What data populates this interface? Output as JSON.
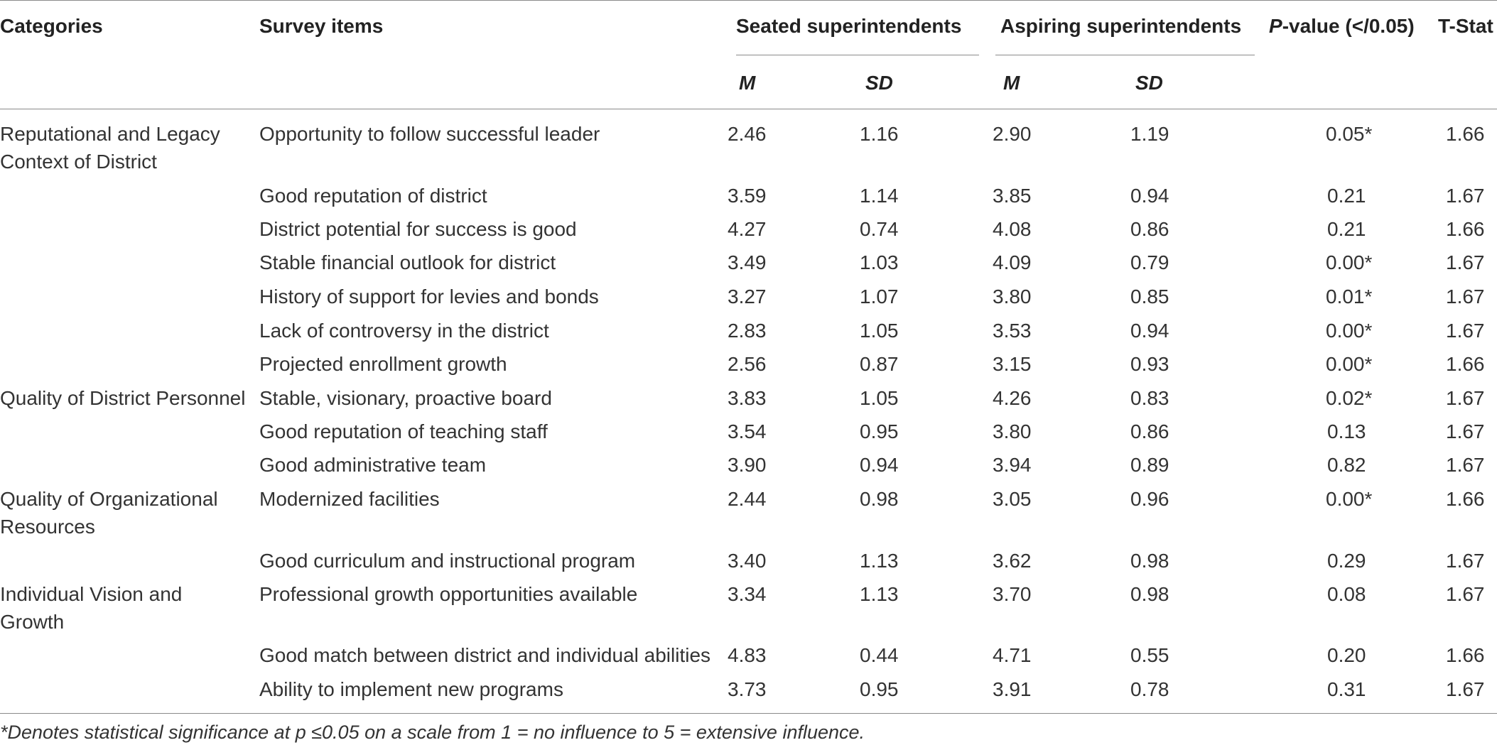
{
  "table": {
    "headers": {
      "categories": "Categories",
      "survey_items": "Survey items",
      "seated": "Seated superintendents",
      "aspiring": "Aspiring superintendents",
      "p_value_prefix": "P",
      "p_value_rest": "-value (</0.05)",
      "t_stat": "T-Stat",
      "m": "M",
      "sd": "SD"
    },
    "categories": [
      "Reputational and Legacy Context of District",
      "Quality of District Personnel",
      "Quality of Organizational Resources",
      "Individual Vision and Growth"
    ],
    "rows": [
      {
        "item": "Opportunity to follow successful leader",
        "seated_m": "2.46",
        "seated_sd": "1.16",
        "aspiring_m": "2.90",
        "aspiring_sd": "1.19",
        "p": "0.05*",
        "t": "1.66"
      },
      {
        "item": "Good reputation of district",
        "seated_m": "3.59",
        "seated_sd": "1.14",
        "aspiring_m": "3.85",
        "aspiring_sd": "0.94",
        "p": "0.21",
        "t": "1.67"
      },
      {
        "item": "District potential for success is good",
        "seated_m": "4.27",
        "seated_sd": "0.74",
        "aspiring_m": "4.08",
        "aspiring_sd": "0.86",
        "p": "0.21",
        "t": "1.66"
      },
      {
        "item": "Stable financial outlook for district",
        "seated_m": "3.49",
        "seated_sd": "1.03",
        "aspiring_m": "4.09",
        "aspiring_sd": "0.79",
        "p": "0.00*",
        "t": "1.67"
      },
      {
        "item": "History of support for levies and bonds",
        "seated_m": "3.27",
        "seated_sd": "1.07",
        "aspiring_m": "3.80",
        "aspiring_sd": "0.85",
        "p": "0.01*",
        "t": "1.67"
      },
      {
        "item": "Lack of controversy in the district",
        "seated_m": "2.83",
        "seated_sd": "1.05",
        "aspiring_m": "3.53",
        "aspiring_sd": "0.94",
        "p": "0.00*",
        "t": "1.67"
      },
      {
        "item": "Projected enrollment growth",
        "seated_m": "2.56",
        "seated_sd": "0.87",
        "aspiring_m": "3.15",
        "aspiring_sd": "0.93",
        "p": "0.00*",
        "t": "1.66"
      },
      {
        "item": "Stable, visionary, proactive board",
        "seated_m": "3.83",
        "seated_sd": "1.05",
        "aspiring_m": "4.26",
        "aspiring_sd": "0.83",
        "p": "0.02*",
        "t": "1.67"
      },
      {
        "item": "Good reputation of teaching staff",
        "seated_m": "3.54",
        "seated_sd": "0.95",
        "aspiring_m": "3.80",
        "aspiring_sd": "0.86",
        "p": "0.13",
        "t": "1.67"
      },
      {
        "item": "Good administrative team",
        "seated_m": "3.90",
        "seated_sd": "0.94",
        "aspiring_m": "3.94",
        "aspiring_sd": "0.89",
        "p": "0.82",
        "t": "1.67"
      },
      {
        "item": "Modernized facilities",
        "seated_m": "2.44",
        "seated_sd": "0.98",
        "aspiring_m": "3.05",
        "aspiring_sd": "0.96",
        "p": "0.00*",
        "t": "1.66"
      },
      {
        "item": "Good curriculum and instructional program",
        "seated_m": "3.40",
        "seated_sd": "1.13",
        "aspiring_m": "3.62",
        "aspiring_sd": "0.98",
        "p": "0.29",
        "t": "1.67"
      },
      {
        "item": "Professional growth opportunities available",
        "seated_m": "3.34",
        "seated_sd": "1.13",
        "aspiring_m": "3.70",
        "aspiring_sd": "0.98",
        "p": "0.08",
        "t": "1.67"
      },
      {
        "item": "Good match between district and individual abilities",
        "seated_m": "4.83",
        "seated_sd": "0.44",
        "aspiring_m": "4.71",
        "aspiring_sd": "0.55",
        "p": "0.20",
        "t": "1.66"
      },
      {
        "item": "Ability to implement new programs",
        "seated_m": "3.73",
        "seated_sd": "0.95",
        "aspiring_m": "3.91",
        "aspiring_sd": "0.78",
        "p": "0.31",
        "t": "1.67"
      }
    ],
    "footnote": "*Denotes statistical significance at p ≤0.05 on a scale from 1 = no influence to 5 = extensive influence."
  }
}
